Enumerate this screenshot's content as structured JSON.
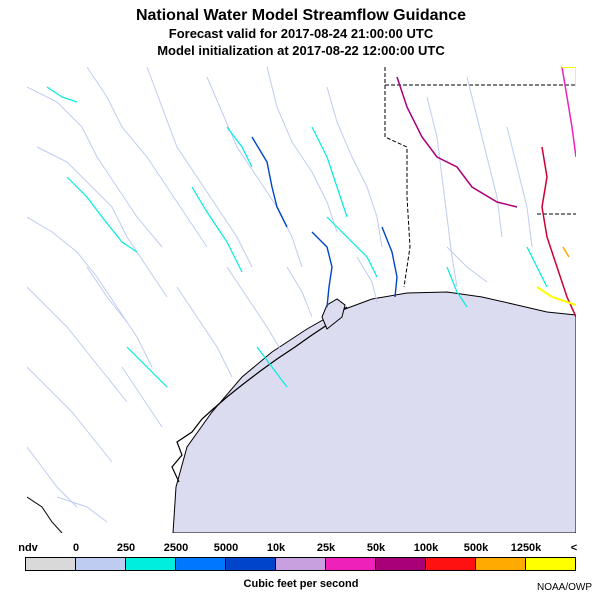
{
  "title": {
    "line1": "National Water Model Streamflow Guidance",
    "line2": "Forecast valid for 2017-08-24 21:00:00 UTC",
    "line3": "Model initialization at 2017-08-22 12:00:00 UTC"
  },
  "legend": {
    "labels": [
      "ndv",
      "0",
      "250",
      "2500",
      "5000",
      "10k",
      "25k",
      "50k",
      "100k",
      "500k",
      "1250k",
      "<"
    ],
    "colors": [
      "#d9d9d9",
      "#bfccf2",
      "#00eedd",
      "#0077ff",
      "#0044cc",
      "#c8a0e0",
      "#ee22bb",
      "#aa0077",
      "#ff1111",
      "#ffaa00",
      "#ffff00"
    ],
    "units": "Cubic feet per second"
  },
  "credit": "NOAA/OWP",
  "map": {
    "water_color": "#dcdcf0",
    "river_color": "#bfccf2",
    "border_color": "#000000"
  }
}
